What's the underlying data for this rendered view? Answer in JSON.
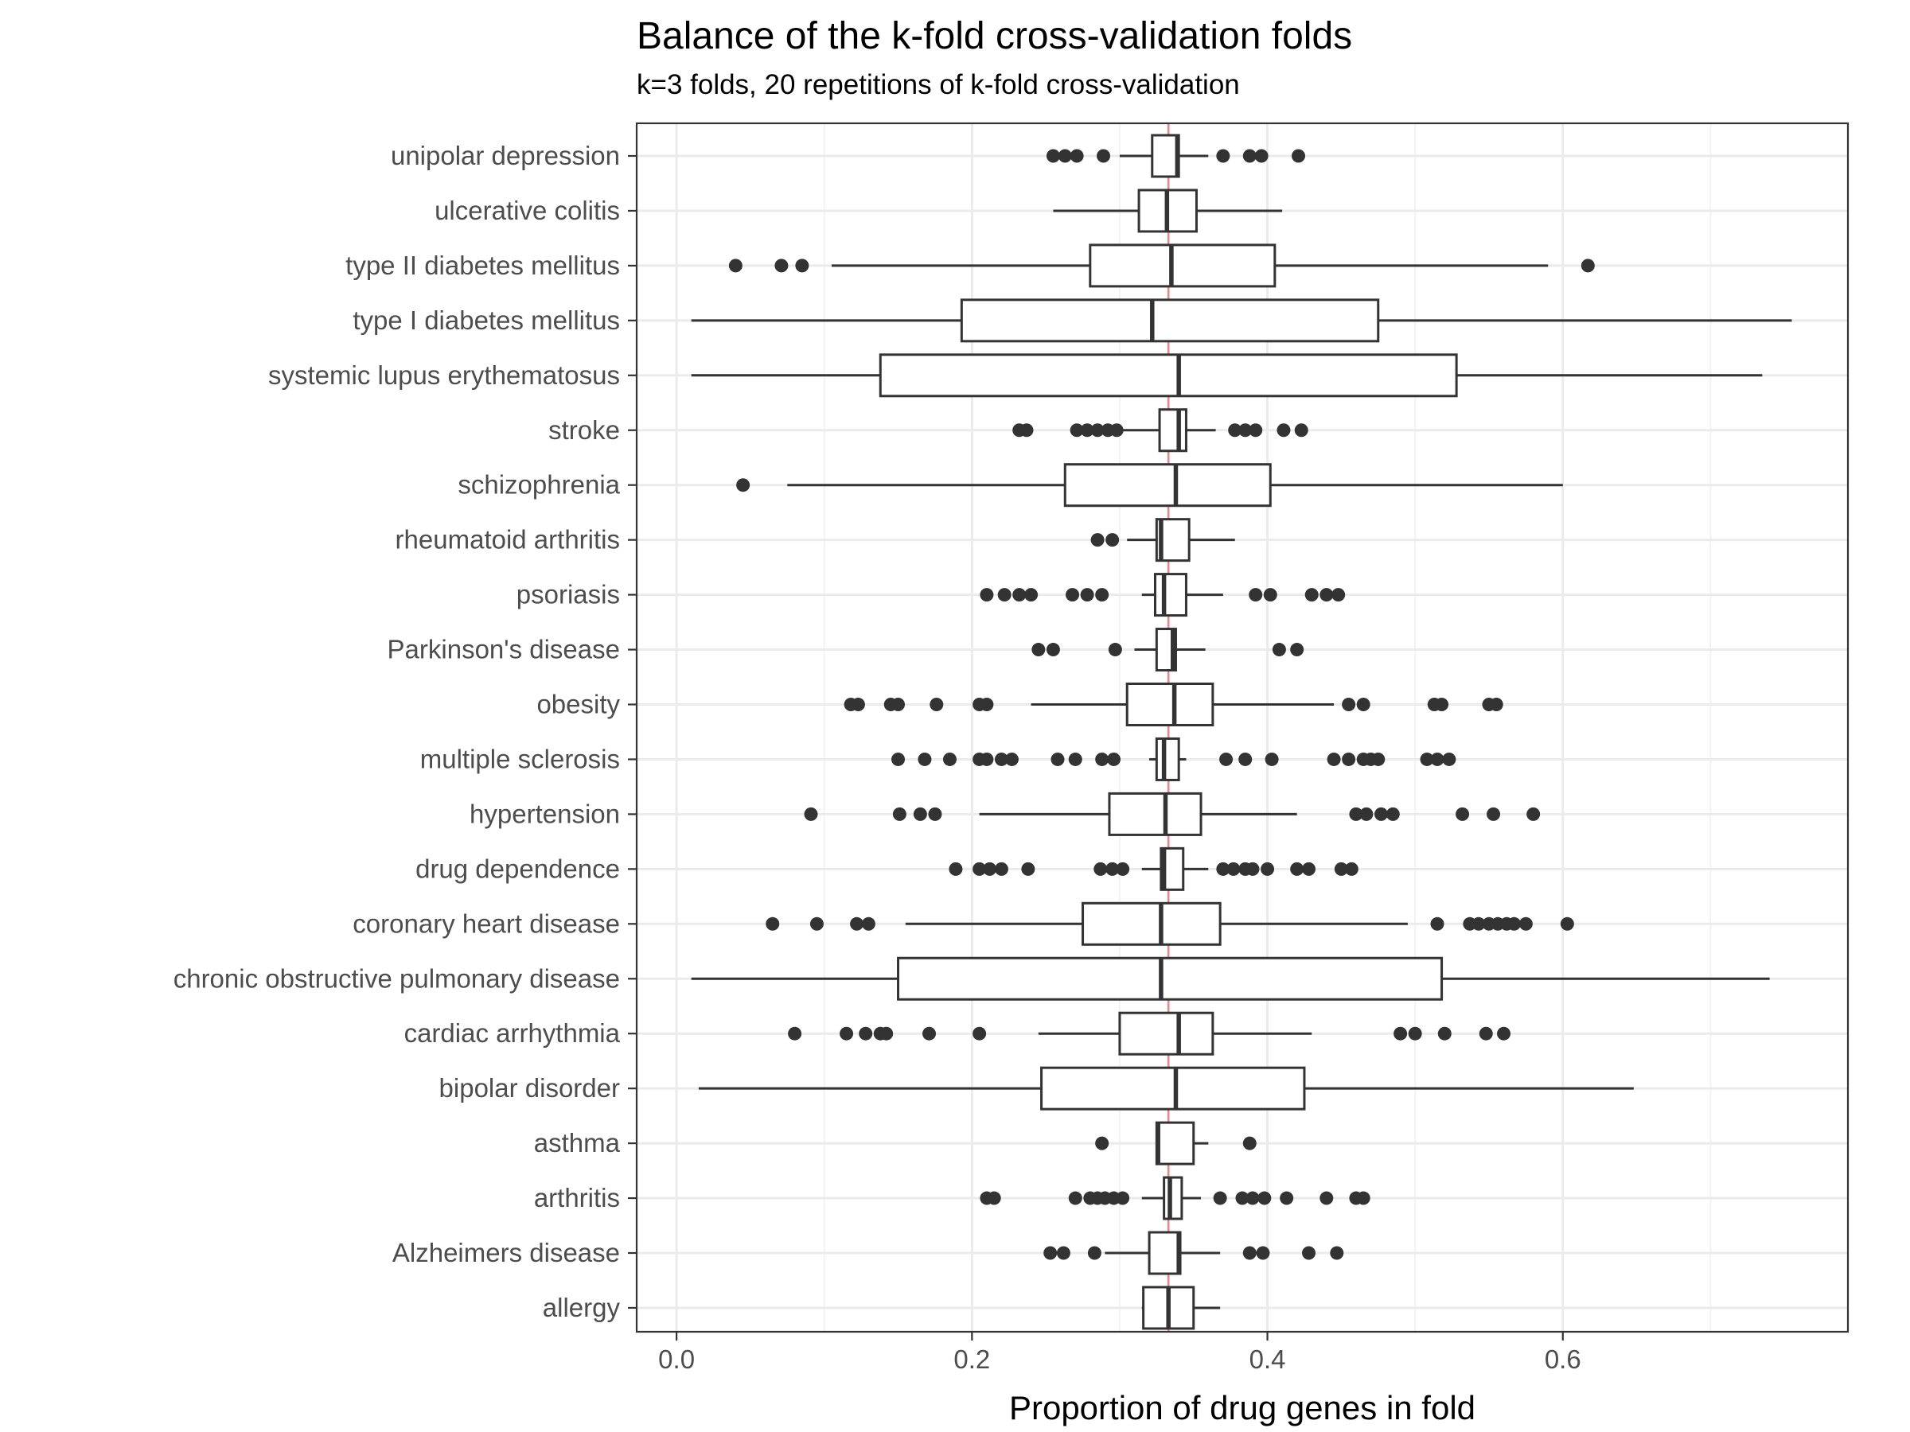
{
  "chart_data": {
    "type": "boxplot",
    "orientation": "horizontal",
    "title": "Balance of the k-fold cross-validation folds",
    "subtitle": "k=3 folds, 20 repetitions of k-fold cross-validation",
    "xlabel": "Proportion of drug genes in fold",
    "ylabel": "",
    "xlim": [
      -0.027,
      0.793
    ],
    "x_ticks": [
      0.0,
      0.2,
      0.4,
      0.6
    ],
    "x_tick_labels": [
      "0.0",
      "0.2",
      "0.4",
      "0.6"
    ],
    "x_minor_gridlines": [
      0.1,
      0.3,
      0.5,
      0.7
    ],
    "reference_line": {
      "x": 0.333,
      "color": "#e8868a"
    },
    "grid": true,
    "categories": [
      "unipolar depression",
      "ulcerative colitis",
      "type II diabetes mellitus",
      "type I diabetes mellitus",
      "systemic lupus erythematosus",
      "stroke",
      "schizophrenia",
      "rheumatoid arthritis",
      "psoriasis",
      "Parkinson's disease",
      "obesity",
      "multiple sclerosis",
      "hypertension",
      "drug dependence",
      "coronary heart disease",
      "chronic obstructive pulmonary disease",
      "cardiac arrhythmia",
      "bipolar disorder",
      "asthma",
      "arthritis",
      "Alzheimers disease",
      "allergy"
    ],
    "boxes": [
      {
        "whisker_low": 0.3,
        "q1": 0.322,
        "median": 0.339,
        "q3": 0.34,
        "whisker_high": 0.36,
        "outliers": [
          0.255,
          0.263,
          0.271,
          0.289,
          0.37,
          0.388,
          0.396,
          0.421
        ]
      },
      {
        "whisker_low": 0.255,
        "q1": 0.313,
        "median": 0.332,
        "q3": 0.352,
        "whisker_high": 0.41,
        "outliers": []
      },
      {
        "whisker_low": 0.105,
        "q1": 0.28,
        "median": 0.335,
        "q3": 0.405,
        "whisker_high": 0.59,
        "outliers": [
          0.04,
          0.071,
          0.085,
          0.617
        ]
      },
      {
        "whisker_low": 0.01,
        "q1": 0.193,
        "median": 0.322,
        "q3": 0.475,
        "whisker_high": 0.755,
        "outliers": []
      },
      {
        "whisker_low": 0.01,
        "q1": 0.138,
        "median": 0.34,
        "q3": 0.528,
        "whisker_high": 0.735,
        "outliers": []
      },
      {
        "whisker_low": 0.3,
        "q1": 0.327,
        "median": 0.34,
        "q3": 0.345,
        "whisker_high": 0.365,
        "outliers": [
          0.232,
          0.237,
          0.271,
          0.278,
          0.285,
          0.292,
          0.298,
          0.378,
          0.385,
          0.392,
          0.411,
          0.423
        ]
      },
      {
        "whisker_low": 0.075,
        "q1": 0.263,
        "median": 0.338,
        "q3": 0.402,
        "whisker_high": 0.6,
        "outliers": [
          0.045
        ]
      },
      {
        "whisker_low": 0.305,
        "q1": 0.325,
        "median": 0.328,
        "q3": 0.347,
        "whisker_high": 0.378,
        "outliers": [
          0.285,
          0.295
        ]
      },
      {
        "whisker_low": 0.315,
        "q1": 0.324,
        "median": 0.33,
        "q3": 0.345,
        "whisker_high": 0.37,
        "outliers": [
          0.21,
          0.222,
          0.232,
          0.24,
          0.268,
          0.278,
          0.288,
          0.392,
          0.402,
          0.43,
          0.44,
          0.448
        ]
      },
      {
        "whisker_low": 0.31,
        "q1": 0.325,
        "median": 0.336,
        "q3": 0.338,
        "whisker_high": 0.358,
        "outliers": [
          0.245,
          0.255,
          0.297,
          0.408,
          0.42
        ]
      },
      {
        "whisker_low": 0.24,
        "q1": 0.305,
        "median": 0.337,
        "q3": 0.363,
        "whisker_high": 0.445,
        "outliers": [
          0.118,
          0.123,
          0.145,
          0.15,
          0.176,
          0.205,
          0.21,
          0.455,
          0.465,
          0.513,
          0.518,
          0.55,
          0.555
        ]
      },
      {
        "whisker_low": 0.32,
        "q1": 0.325,
        "median": 0.33,
        "q3": 0.34,
        "whisker_high": 0.345,
        "outliers": [
          0.15,
          0.168,
          0.185,
          0.205,
          0.21,
          0.22,
          0.227,
          0.258,
          0.27,
          0.288,
          0.296,
          0.372,
          0.385,
          0.403,
          0.445,
          0.455,
          0.465,
          0.47,
          0.475,
          0.508,
          0.515,
          0.523
        ]
      },
      {
        "whisker_low": 0.205,
        "q1": 0.293,
        "median": 0.331,
        "q3": 0.355,
        "whisker_high": 0.42,
        "outliers": [
          0.091,
          0.151,
          0.165,
          0.175,
          0.46,
          0.467,
          0.477,
          0.485,
          0.532,
          0.553,
          0.58
        ]
      },
      {
        "whisker_low": 0.315,
        "q1": 0.328,
        "median": 0.33,
        "q3": 0.343,
        "whisker_high": 0.36,
        "outliers": [
          0.189,
          0.205,
          0.212,
          0.22,
          0.238,
          0.287,
          0.295,
          0.302,
          0.37,
          0.377,
          0.385,
          0.39,
          0.4,
          0.42,
          0.428,
          0.45,
          0.457
        ]
      },
      {
        "whisker_low": 0.155,
        "q1": 0.275,
        "median": 0.328,
        "q3": 0.368,
        "whisker_high": 0.495,
        "outliers": [
          0.065,
          0.095,
          0.122,
          0.13,
          0.515,
          0.537,
          0.543,
          0.55,
          0.556,
          0.562,
          0.567,
          0.575,
          0.603
        ]
      },
      {
        "whisker_low": 0.01,
        "q1": 0.15,
        "median": 0.328,
        "q3": 0.518,
        "whisker_high": 0.74,
        "outliers": []
      },
      {
        "whisker_low": 0.245,
        "q1": 0.3,
        "median": 0.34,
        "q3": 0.363,
        "whisker_high": 0.43,
        "outliers": [
          0.08,
          0.115,
          0.128,
          0.138,
          0.142,
          0.171,
          0.205,
          0.49,
          0.5,
          0.52,
          0.548,
          0.56
        ]
      },
      {
        "whisker_low": 0.015,
        "q1": 0.247,
        "median": 0.338,
        "q3": 0.425,
        "whisker_high": 0.648,
        "outliers": []
      },
      {
        "whisker_low": 0.325,
        "q1": 0.325,
        "median": 0.326,
        "q3": 0.35,
        "whisker_high": 0.36,
        "outliers": [
          0.288,
          0.388
        ]
      },
      {
        "whisker_low": 0.315,
        "q1": 0.33,
        "median": 0.334,
        "q3": 0.342,
        "whisker_high": 0.355,
        "outliers": [
          0.21,
          0.215,
          0.27,
          0.28,
          0.285,
          0.29,
          0.296,
          0.302,
          0.368,
          0.383,
          0.39,
          0.398,
          0.413,
          0.44,
          0.46,
          0.465
        ]
      },
      {
        "whisker_low": 0.29,
        "q1": 0.32,
        "median": 0.34,
        "q3": 0.341,
        "whisker_high": 0.368,
        "outliers": [
          0.253,
          0.262,
          0.283,
          0.388,
          0.397,
          0.428,
          0.447
        ]
      },
      {
        "whisker_low": 0.315,
        "q1": 0.316,
        "median": 0.333,
        "q3": 0.35,
        "whisker_high": 0.368,
        "outliers": []
      }
    ]
  }
}
